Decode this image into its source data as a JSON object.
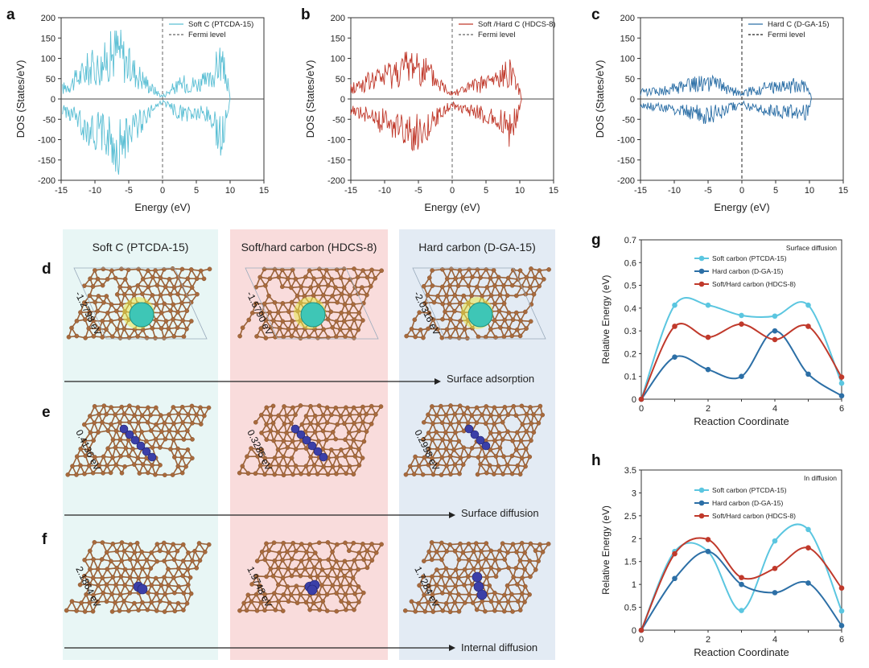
{
  "panel_labels": {
    "a": "a",
    "b": "b",
    "c": "c",
    "d": "d",
    "e": "e",
    "f": "f",
    "g": "g",
    "h": "h"
  },
  "structures": {
    "columns": [
      "Soft C (PTCDA-15)",
      "Soft/hard carbon (HDCS-8)",
      "Hard carbon (D-GA-15)"
    ],
    "column_colors": [
      "#e8f6f5",
      "#f9dcdc",
      "#e3ebf4"
    ],
    "rows": [
      {
        "label": "Surface adsorption",
        "energies": [
          "-1.2798 eV",
          "-1.5790 eV",
          "-2.0316 eV"
        ]
      },
      {
        "label": "Surface diffusion",
        "energies": [
          "0.4136 eV",
          "0.3285 eV",
          "0.2998 eV"
        ]
      },
      {
        "label": "Internal diffusion",
        "energies": [
          "2.1864 eV",
          "1.9748 eV",
          "1.7284 eV"
        ]
      }
    ],
    "atom_color": "#a86a3c",
    "ion_color": "#3b3fa8",
    "adsorb_color": "#3ec6b6"
  },
  "chart_data": [
    {
      "id": "a",
      "type": "line",
      "xlabel": "Energy (eV)",
      "ylabel": "DOS (States/eV)",
      "xlim": [
        -15,
        15
      ],
      "ylim": [
        -200,
        200
      ],
      "xticks": [
        -15,
        -10,
        -5,
        0,
        5,
        10,
        15
      ],
      "yticks": [
        200,
        150,
        100,
        50,
        0,
        -50,
        -100,
        -150,
        -200
      ],
      "legend": {
        "position": "top-right",
        "entries": [
          {
            "label": "Soft C (PTCDA-15)",
            "color": "#5bbfd4",
            "dash": false
          },
          {
            "label": "Fermi level",
            "color": "#666666",
            "dash": true
          }
        ]
      },
      "series": [
        {
          "name": "Soft C (PTCDA-15)",
          "color": "#5bbfd4",
          "envelope": {
            "x": [
              -14.8,
              -13,
              -11,
              -9,
              -7,
              -6.5,
              -5,
              -3,
              -1.5,
              0,
              1.5,
              3,
              5,
              7,
              8.5,
              9.5,
              10
            ],
            "y": [
              40,
              70,
              120,
              130,
              190,
              195,
              130,
              80,
              40,
              10,
              40,
              60,
              60,
              70,
              150,
              80,
              0
            ]
          },
          "mirrored": true
        }
      ]
    },
    {
      "id": "b",
      "type": "line",
      "xlabel": "Energy (eV)",
      "ylabel": "DOS (States/eV)",
      "xlim": [
        -15,
        15
      ],
      "ylim": [
        -200,
        200
      ],
      "xticks": [
        -15,
        -10,
        -5,
        0,
        5,
        10,
        15
      ],
      "yticks": [
        200,
        150,
        100,
        50,
        0,
        -50,
        -100,
        -150,
        -200
      ],
      "legend": {
        "position": "top-right",
        "entries": [
          {
            "label": "Soft /Hard C (HDCS-8)",
            "color": "#c0392b",
            "dash": false
          },
          {
            "label": "Fermi level",
            "color": "#666666",
            "dash": true
          }
        ]
      },
      "series": [
        {
          "name": "Soft /Hard C (HDCS-8)",
          "color": "#c0392b",
          "envelope": {
            "x": [
              -15,
              -13,
              -11,
              -9,
              -7,
              -5.5,
              -4,
              -2,
              0,
              2,
              4,
              6,
              7.5,
              8.5,
              9.5,
              10.3
            ],
            "y": [
              40,
              60,
              80,
              100,
              120,
              140,
              110,
              60,
              25,
              40,
              55,
              70,
              85,
              120,
              70,
              0
            ]
          },
          "mirrored": true
        }
      ]
    },
    {
      "id": "c",
      "type": "line",
      "xlabel": "Energy (eV)",
      "ylabel": "DOS (States/eV)",
      "xlim": [
        -15,
        15
      ],
      "ylim": [
        -200,
        200
      ],
      "xticks": [
        -15,
        -10,
        -5,
        0,
        5,
        10,
        15
      ],
      "yticks": [
        200,
        150,
        100,
        50,
        0,
        -50,
        -100,
        -150,
        -200
      ],
      "legend": {
        "position": "top-right",
        "entries": [
          {
            "label": "Hard C (D-GA-15)",
            "color": "#2c6fa6",
            "dash": false
          },
          {
            "label": "Fermi level",
            "color": "#222222",
            "dash": true
          }
        ]
      },
      "series": [
        {
          "name": "Hard C (D-GA-15)",
          "color": "#2c6fa6",
          "envelope": {
            "x": [
              -15,
              -13,
              -11,
              -9,
              -7,
              -5,
              -3,
              -1,
              0,
              1,
              3,
              5,
              7,
              9,
              9.8,
              10.3
            ],
            "y": [
              25,
              30,
              35,
              45,
              55,
              65,
              50,
              30,
              15,
              30,
              40,
              45,
              50,
              58,
              50,
              0
            ]
          },
          "mirrored": true
        }
      ]
    },
    {
      "id": "g",
      "type": "line",
      "title": "Surface diffusion",
      "xlabel": "Reaction Coordinate",
      "ylabel": "Relative Energy (eV)",
      "xlim": [
        0,
        6
      ],
      "ylim": [
        0,
        0.7
      ],
      "xticks": [
        0,
        2,
        4,
        6
      ],
      "yticks": [
        0,
        0.1,
        0.2,
        0.3,
        0.4,
        0.5,
        0.6,
        0.7
      ],
      "legend": {
        "position": "top-left"
      },
      "series": [
        {
          "name": "Soft carbon (PTCDA-15)",
          "color": "#5bc6e0",
          "x": [
            0,
            1,
            2,
            3,
            4,
            5,
            6
          ],
          "values": [
            0,
            0.413,
            0.413,
            0.368,
            0.365,
            0.413,
            0.07
          ]
        },
        {
          "name": "Hard carbon (D-GA-15)",
          "color": "#2c6fa6",
          "x": [
            0,
            1,
            2,
            3,
            4,
            5,
            6
          ],
          "values": [
            0,
            0.185,
            0.13,
            0.1,
            0.3,
            0.11,
            0.015
          ]
        },
        {
          "name": "Soft/Hard carbon (HDCS-8)",
          "color": "#c0392b",
          "x": [
            0,
            1,
            2,
            3,
            4,
            5,
            6
          ],
          "values": [
            0,
            0.32,
            0.272,
            0.33,
            0.262,
            0.32,
            0.097
          ]
        }
      ]
    },
    {
      "id": "h",
      "type": "line",
      "title": "In diffusion",
      "xlabel": "Reaction Coordinate",
      "ylabel": "Relative Energy (eV)",
      "xlim": [
        0,
        6
      ],
      "ylim": [
        0,
        3.5
      ],
      "xticks": [
        0,
        2,
        4,
        6
      ],
      "yticks": [
        0,
        0.5,
        1,
        1.5,
        2,
        2.5,
        3,
        3.5
      ],
      "legend": {
        "position": "top-left"
      },
      "series": [
        {
          "name": "Soft carbon (PTCDA-15)",
          "color": "#5bc6e0",
          "x": [
            0,
            1,
            2,
            3,
            4,
            5,
            6
          ],
          "values": [
            0,
            1.72,
            1.72,
            0.43,
            1.95,
            2.2,
            0.42
          ]
        },
        {
          "name": "Hard carbon (D-GA-15)",
          "color": "#2c6fa6",
          "x": [
            0,
            1,
            2,
            3,
            4,
            5,
            6
          ],
          "values": [
            0,
            1.13,
            1.72,
            1.0,
            0.82,
            1.03,
            0.1
          ]
        },
        {
          "name": "Soft/Hard carbon (HDCS-8)",
          "color": "#c0392b",
          "x": [
            0,
            1,
            2,
            3,
            4,
            5,
            6
          ],
          "values": [
            0,
            1.67,
            1.98,
            1.15,
            1.35,
            1.8,
            0.92
          ]
        }
      ]
    }
  ]
}
